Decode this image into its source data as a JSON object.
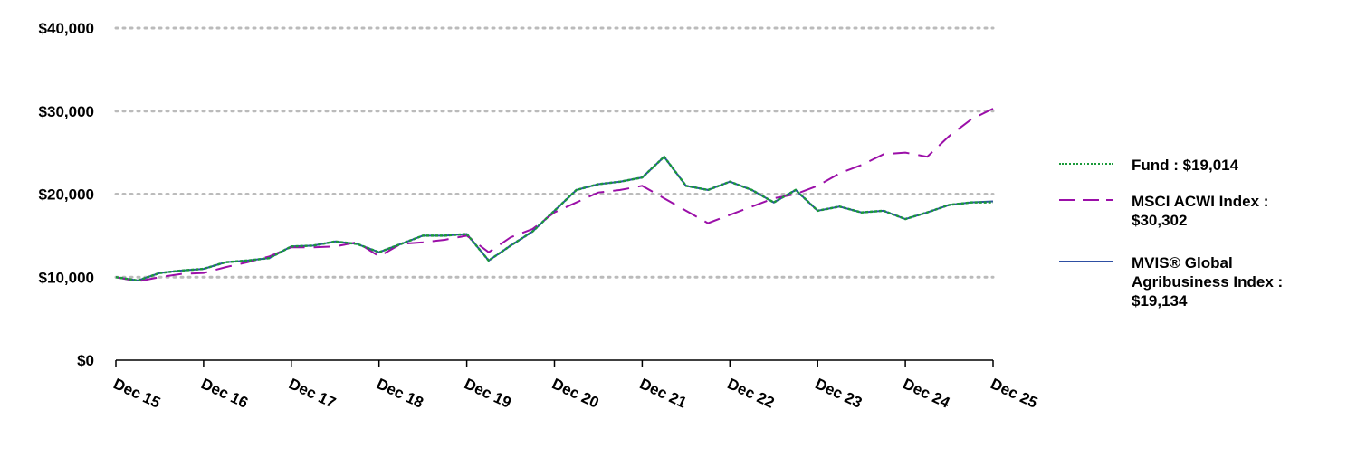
{
  "chart_data": {
    "type": "line",
    "categories": [
      "Dec 15",
      null,
      null,
      null,
      "Dec 16",
      null,
      null,
      null,
      "Dec 17",
      null,
      null,
      null,
      "Dec 18",
      null,
      null,
      null,
      "Dec 19",
      null,
      null,
      null,
      "Dec 20",
      null,
      null,
      null,
      "Dec 21",
      null,
      null,
      null,
      "Dec 22",
      null,
      null,
      null,
      "Dec 23",
      null,
      null,
      null,
      "Dec 24",
      null,
      null,
      null,
      "Dec 25"
    ],
    "series": [
      {
        "name": "MVIS® Global Agribusiness Index : $19,134",
        "color": "#2e4fa3",
        "dash": "solid",
        "values": [
          10000,
          9600,
          10500,
          10800,
          11000,
          11800,
          12000,
          12300,
          13700,
          13800,
          14300,
          14000,
          13000,
          14000,
          15000,
          15000,
          15200,
          12000,
          13800,
          15500,
          18000,
          20500,
          21200,
          21500,
          22000,
          24500,
          21000,
          20500,
          21500,
          20500,
          19000,
          20500,
          18000,
          18500,
          17800,
          18000,
          17000,
          17800,
          18700,
          19000,
          19134
        ]
      },
      {
        "name": "MSCI ACWI Index : $30,302",
        "color": "#9b0fa8",
        "dash": "long",
        "values": [
          10000,
          9500,
          10000,
          10400,
          10500,
          11200,
          11800,
          12500,
          13600,
          13600,
          13700,
          14200,
          12500,
          14000,
          14200,
          14500,
          15000,
          13000,
          14800,
          15800,
          17800,
          19000,
          20200,
          20500,
          21000,
          19500,
          18000,
          16500,
          17500,
          18500,
          19500,
          20000,
          21000,
          22500,
          23500,
          24800,
          25000,
          24500,
          27000,
          29000,
          30302
        ]
      },
      {
        "name": "Fund : $19,014",
        "color": "#1a9a3a",
        "dash": "dotted",
        "values": [
          10000,
          9600,
          10500,
          10800,
          11000,
          11800,
          12000,
          12300,
          13700,
          13800,
          14300,
          14000,
          13000,
          14000,
          15000,
          15000,
          15200,
          12000,
          13800,
          15500,
          18000,
          20500,
          21200,
          21500,
          22000,
          24500,
          21000,
          20500,
          21500,
          20500,
          19000,
          20500,
          18000,
          18500,
          17800,
          18000,
          17000,
          17800,
          18700,
          19000,
          19014
        ]
      }
    ],
    "ylim": [
      0,
      40000
    ],
    "yticks": [
      {
        "value": 0,
        "label": "$0"
      },
      {
        "value": 10000,
        "label": "$10,000"
      },
      {
        "value": 20000,
        "label": "$20,000"
      },
      {
        "value": 30000,
        "label": "$30,000"
      },
      {
        "value": 40000,
        "label": "$40,000"
      }
    ],
    "grid": true
  }
}
